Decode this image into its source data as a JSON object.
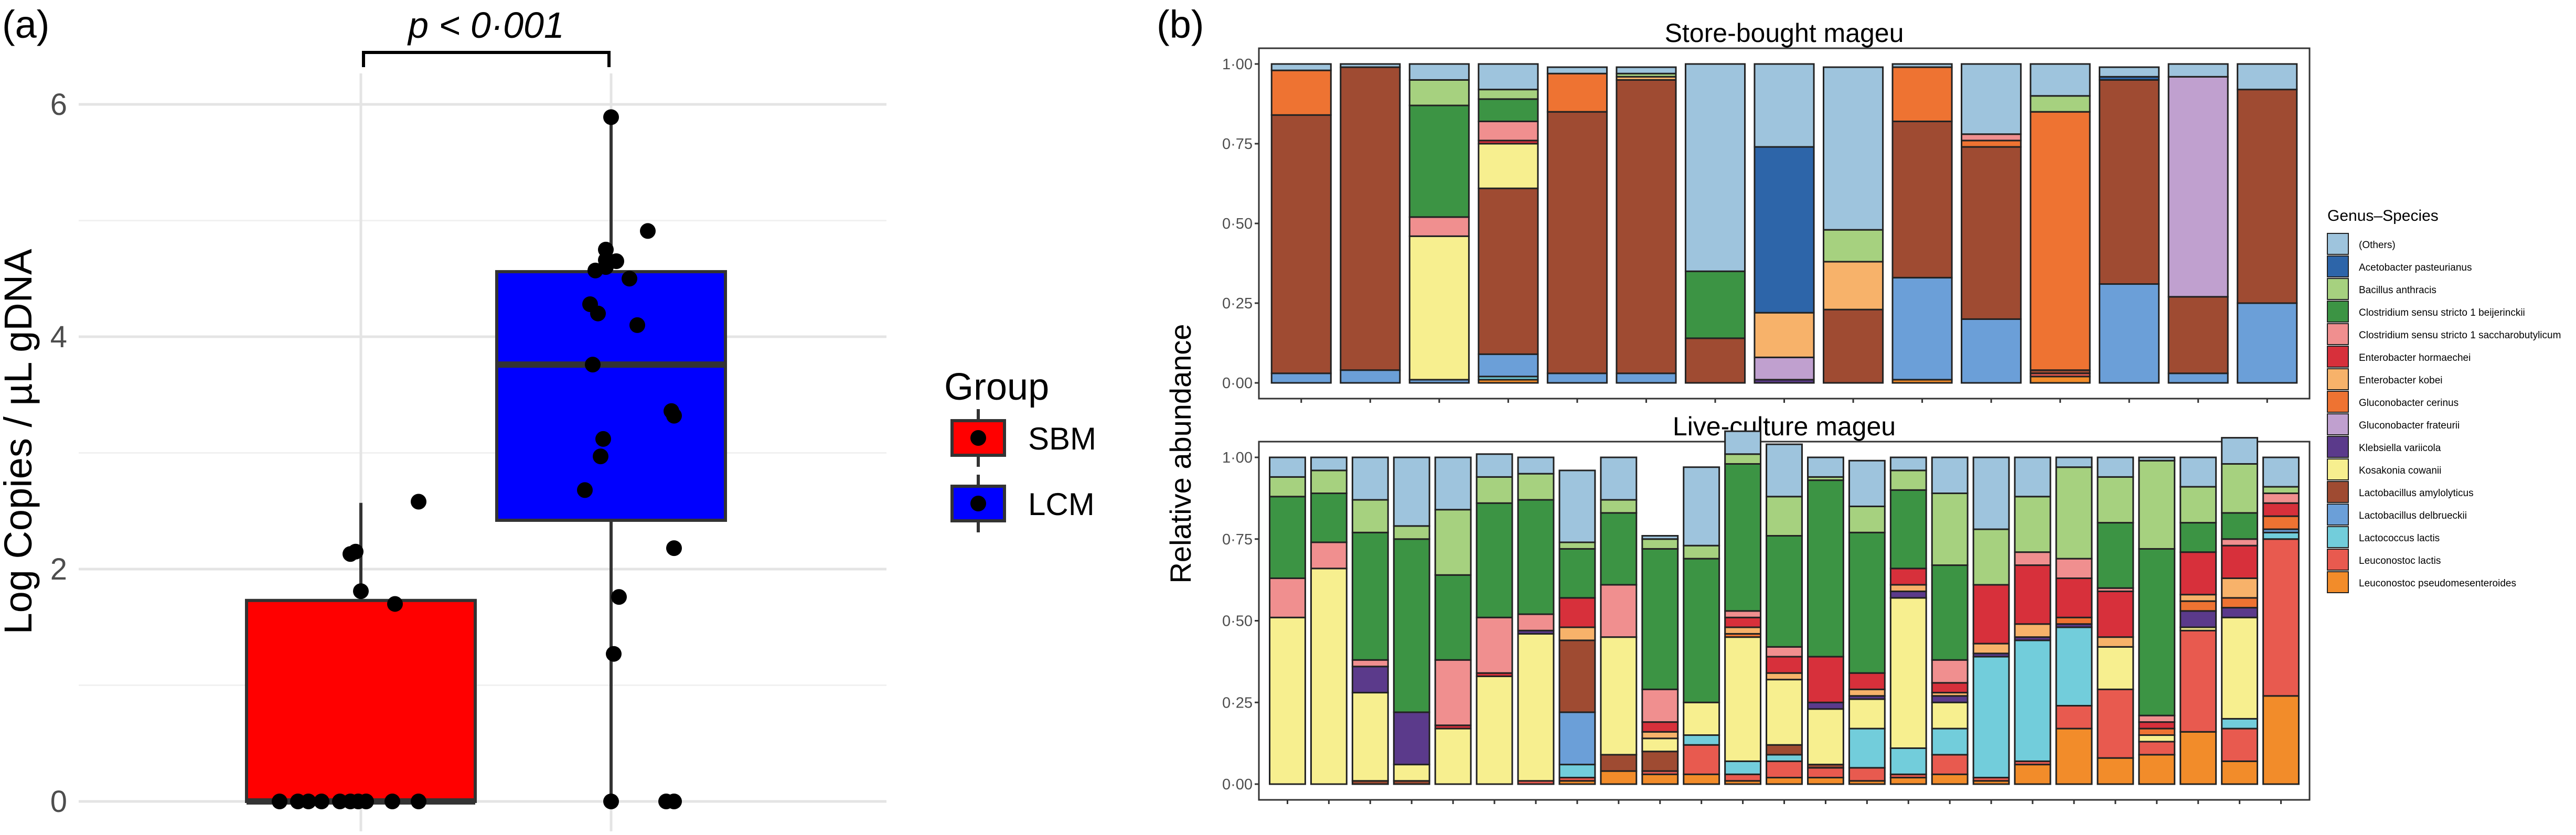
{
  "panel_a": {
    "label": "(a)",
    "pvalue": "p < 0·001",
    "ylabel": "Log Copies / µL gDNA",
    "legend_title": "Group"
  },
  "panel_b": {
    "label": "(b)",
    "ylabel": "Relative abundance",
    "legend_title": "Genus–Species"
  },
  "colors": {
    "SBM": "#ff0000",
    "LCM": "#0000ff",
    "taxa": [
      "#9ec4dd",
      "#2d65a9",
      "#a6d17f",
      "#3c9444",
      "#f08f8f",
      "#d7303b",
      "#f7b26a",
      "#ee7332",
      "#c0a0cf",
      "#5b3a8b",
      "#f7ef8f",
      "#9f4b32",
      "#6b9fd8",
      "#72cddb",
      "#e85a4f",
      "#f28c2a"
    ]
  },
  "chart_data": [
    {
      "type": "box",
      "title": "",
      "xlabel": "",
      "ylabel": "Log Copies / µL gDNA",
      "ylim": [
        0,
        6.3
      ],
      "yticks": [
        "0",
        "2",
        "4",
        "6"
      ],
      "grid": true,
      "legend": {
        "title": "Group",
        "placement": "right",
        "entries": [
          "SBM",
          "LCM"
        ]
      },
      "annotation": "p < 0·001",
      "groups": [
        {
          "name": "SBM",
          "q1": 0.0,
          "median": 0.0,
          "q3": 1.73,
          "whisker_low": 0.0,
          "whisker_high": 2.57,
          "points": [
            0,
            0,
            0,
            0,
            0,
            0,
            0,
            0,
            0,
            0,
            2.13,
            2.15,
            1.81,
            1.7,
            2.58
          ]
        },
        {
          "name": "LCM",
          "q1": 2.42,
          "median": 3.76,
          "q3": 4.56,
          "whisker_low": 0.0,
          "whisker_high": 5.89,
          "points": [
            5.89,
            4.91,
            4.75,
            4.66,
            4.65,
            4.6,
            4.57,
            4.5,
            4.28,
            4.2,
            4.1,
            3.76,
            3.36,
            3.32,
            3.12,
            2.97,
            2.68,
            2.18,
            1.76,
            1.27,
            0,
            0,
            0
          ]
        }
      ]
    },
    {
      "type": "bar",
      "stacked": true,
      "facets": [
        "Store-bought mageu",
        "Live-culture mageu"
      ],
      "ylabel": "Relative abundance",
      "ylim": [
        0,
        1
      ],
      "yticks": [
        "0·00",
        "0·25",
        "0·50",
        "0·75",
        "1·00"
      ],
      "legend": {
        "title": "Genus–Species",
        "placement": "right"
      },
      "taxa": [
        "(Others)",
        "Acetobacter pasteurianus",
        "Bacillus anthracis",
        "Clostridium sensu stricto 1 beijerinckii",
        "Clostridium sensu stricto 1 saccharobutylicum",
        "Enterobacter hormaechei",
        "Enterobacter kobei",
        "Gluconobacter cerinus",
        "Gluconobacter frateurii",
        "Klebsiella variicola",
        "Kosakonia cowanii",
        "Lactobacillus amylolyticus",
        "Lactobacillus delbrueckii",
        "Lactococcus lactis",
        "Leuconostoc lactis",
        "Leuconostoc pseudomesenteroides"
      ],
      "store_bought": [
        [
          0.02,
          0,
          0,
          0,
          0,
          0,
          0,
          0.14,
          0,
          0,
          0,
          0.81,
          0.03,
          0,
          0,
          0
        ],
        [
          0.01,
          0,
          0,
          0,
          0,
          0,
          0,
          0,
          0,
          0,
          0,
          0.95,
          0.04,
          0,
          0,
          0
        ],
        [
          0.05,
          0,
          0.08,
          0.35,
          0.06,
          0,
          0,
          0,
          0,
          0,
          0.45,
          0,
          0.01,
          0,
          0,
          0
        ],
        [
          0.08,
          0,
          0.03,
          0.07,
          0.06,
          0.01,
          0,
          0,
          0,
          0,
          0.14,
          0.52,
          0.07,
          0.01,
          0,
          0.01
        ],
        [
          0.02,
          0,
          0,
          0,
          0,
          0,
          0,
          0.12,
          0,
          0,
          0,
          0.82,
          0.03,
          0,
          0,
          0
        ],
        [
          0.02,
          0,
          0.01,
          0,
          0,
          0,
          0.01,
          0,
          0,
          0,
          0,
          0.92,
          0.03,
          0,
          0,
          0
        ],
        [
          0.65,
          0,
          0,
          0.21,
          0,
          0,
          0,
          0,
          0,
          0,
          0,
          0.14,
          0,
          0,
          0,
          0
        ],
        [
          0.26,
          0.52,
          0,
          0,
          0,
          0,
          0.14,
          0,
          0.07,
          0.01,
          0,
          0,
          0,
          0,
          0,
          0
        ],
        [
          0.51,
          0,
          0.1,
          0,
          0,
          0,
          0.15,
          0,
          0,
          0,
          0,
          0.23,
          0,
          0,
          0,
          0
        ],
        [
          0.01,
          0,
          0,
          0,
          0,
          0,
          0,
          0.17,
          0,
          0,
          0,
          0.49,
          0.32,
          0,
          0,
          0.01
        ],
        [
          0.22,
          0,
          0,
          0,
          0.02,
          0,
          0,
          0.02,
          0,
          0,
          0,
          0.54,
          0.2,
          0,
          0,
          0
        ],
        [
          0.1,
          0,
          0.05,
          0,
          0,
          0,
          0,
          0.81,
          0,
          0,
          0,
          0.01,
          0,
          0,
          0.01,
          0.02
        ],
        [
          0.03,
          0.01,
          0,
          0,
          0,
          0,
          0,
          0,
          0,
          0,
          0,
          0.64,
          0.31,
          0,
          0,
          0
        ],
        [
          0.04,
          0,
          0,
          0,
          0,
          0,
          0,
          0,
          0.69,
          0,
          0,
          0.24,
          0.03,
          0,
          0,
          0
        ],
        [
          0.08,
          0,
          0,
          0,
          0,
          0,
          0,
          0,
          0,
          0,
          0,
          0.67,
          0.25,
          0,
          0,
          0
        ]
      ],
      "live_culture": [
        [
          0.06,
          0,
          0.06,
          0.25,
          0.12,
          0,
          0,
          0,
          0,
          0,
          0.51,
          0,
          0,
          0,
          0,
          0
        ],
        [
          0.04,
          0,
          0.07,
          0.15,
          0.08,
          0,
          0,
          0,
          0,
          0,
          0.66,
          0,
          0,
          0,
          0,
          0
        ],
        [
          0.13,
          0,
          0.1,
          0.39,
          0.02,
          0,
          0,
          0,
          0,
          0.08,
          0.27,
          0.01,
          0,
          0,
          0,
          0
        ],
        [
          0.21,
          0,
          0.04,
          0.53,
          0,
          0,
          0,
          0,
          0,
          0.16,
          0.05,
          0.01,
          0,
          0,
          0,
          0
        ],
        [
          0.16,
          0,
          0.2,
          0.26,
          0.2,
          0.01,
          0,
          0,
          0,
          0,
          0.17,
          0,
          0,
          0,
          0,
          0
        ],
        [
          0.07,
          0,
          0.08,
          0.35,
          0.17,
          0.01,
          0,
          0,
          0,
          0,
          0.33,
          0,
          0,
          0,
          0,
          0
        ],
        [
          0.05,
          0,
          0.08,
          0.35,
          0.05,
          0,
          0,
          0,
          0,
          0.01,
          0.45,
          0,
          0,
          0,
          0.01,
          0
        ],
        [
          0.22,
          0,
          0.02,
          0.15,
          0,
          0.09,
          0.04,
          0,
          0,
          0,
          0,
          0.22,
          0.16,
          0.04,
          0.01,
          0.01
        ],
        [
          0.13,
          0,
          0.04,
          0.22,
          0.16,
          0,
          0,
          0,
          0,
          0,
          0.36,
          0.05,
          0,
          0,
          0,
          0.04
        ],
        [
          0.01,
          0,
          0.03,
          0.43,
          0.1,
          0.03,
          0.02,
          0,
          0,
          0,
          0.04,
          0.06,
          0,
          0,
          0.01,
          0.03
        ],
        [
          0.24,
          0,
          0.04,
          0.44,
          0,
          0,
          0,
          0,
          0,
          0,
          0.1,
          0,
          0,
          0.03,
          0.09,
          0.03
        ],
        [
          0.07,
          0,
          0.03,
          0.45,
          0.02,
          0.03,
          0.02,
          0.01,
          0,
          0,
          0.38,
          0,
          0,
          0.04,
          0.02,
          0.01
        ],
        [
          0.16,
          0,
          0.12,
          0.34,
          0.03,
          0.05,
          0.02,
          0,
          0,
          0,
          0.2,
          0.03,
          0,
          0.02,
          0.05,
          0.02
        ],
        [
          0.06,
          0,
          0.01,
          0.54,
          0,
          0.14,
          0,
          0,
          0,
          0.02,
          0.17,
          0.01,
          0,
          0,
          0.03,
          0.02
        ],
        [
          0.14,
          0,
          0.08,
          0.43,
          0,
          0.05,
          0.02,
          0,
          0,
          0.01,
          0.09,
          0,
          0,
          0.12,
          0.04,
          0.01
        ],
        [
          0.04,
          0,
          0.06,
          0.24,
          0,
          0.05,
          0.02,
          0,
          0,
          0.02,
          0.46,
          0,
          0,
          0.08,
          0.01,
          0.02
        ],
        [
          0.11,
          0,
          0.22,
          0.29,
          0.07,
          0.03,
          0.01,
          0,
          0,
          0.02,
          0.08,
          0,
          0,
          0.08,
          0.06,
          0.03
        ],
        [
          0.22,
          0,
          0.17,
          0,
          0,
          0.18,
          0.03,
          0,
          0,
          0.01,
          0,
          0,
          0,
          0.37,
          0.01,
          0.01
        ],
        [
          0.12,
          0,
          0.17,
          0,
          0.04,
          0.18,
          0.04,
          0,
          0,
          0.01,
          0,
          0,
          0,
          0.37,
          0.01,
          0.06
        ],
        [
          0.03,
          0,
          0.28,
          0,
          0.06,
          0.12,
          0,
          0.02,
          0,
          0.01,
          0,
          0,
          0,
          0.24,
          0.07,
          0.17
        ],
        [
          0.06,
          0,
          0.14,
          0.2,
          0.01,
          0.14,
          0.03,
          0,
          0,
          0,
          0.13,
          0,
          0,
          0,
          0.21,
          0.08
        ],
        [
          0.01,
          0,
          0.27,
          0.51,
          0.02,
          0.02,
          0,
          0.02,
          0,
          0,
          0.02,
          0,
          0,
          0,
          0.04,
          0.09
        ],
        [
          0.09,
          0,
          0.11,
          0.09,
          0,
          0.13,
          0.02,
          0.03,
          0,
          0.05,
          0.01,
          0,
          0,
          0,
          0.31,
          0.16
        ],
        [
          0.08,
          0,
          0.15,
          0.08,
          0.02,
          0.1,
          0.06,
          0.03,
          0,
          0.03,
          0.31,
          0,
          0,
          0.03,
          0.1,
          0.07
        ],
        [
          0.09,
          0,
          0.02,
          0,
          0.03,
          0.04,
          0,
          0.04,
          0,
          0,
          0,
          0,
          0.01,
          0.02,
          0.48,
          0.27
        ]
      ]
    }
  ]
}
